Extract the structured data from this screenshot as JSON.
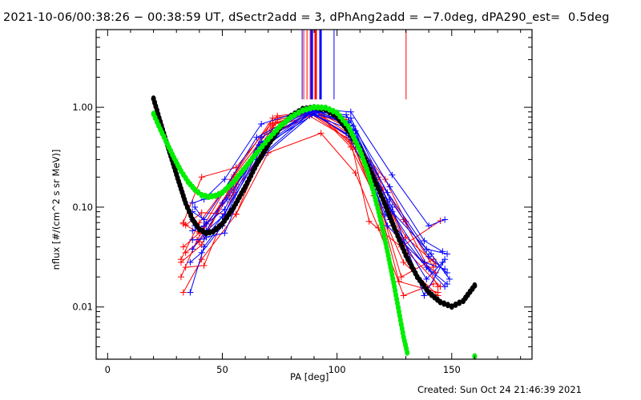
{
  "chart_data": {
    "type": "line",
    "title": "2021-10-06/00:38:26 − 00:38:59 UT, dSectr2add = 3, dPhAng2add = −7.0deg, dPA290_est=  0.5deg",
    "xlabel": "PA [deg]",
    "ylabel": "nflux [#/(cm^2 s sr MeV)]",
    "xlim": [
      -5,
      185
    ],
    "ylim": [
      0.003,
      6.0
    ],
    "yscale": "log",
    "x_ticks": [
      0,
      50,
      100,
      150
    ],
    "x_tick_labels": [
      "0",
      "50",
      "100",
      "150"
    ],
    "y_ticks": [
      0.01,
      0.1,
      1.0
    ],
    "y_tick_labels": [
      "0.01",
      "0.10",
      "1.00"
    ],
    "grid": false,
    "footer": "Created: Sun Oct 24 21:46:39 2021",
    "vertical_markers": [
      {
        "x": 84.8,
        "color": "#0000ff"
      },
      {
        "x": 85.5,
        "color": "#ff0000"
      },
      {
        "x": 86.9,
        "color": "#ff0000"
      },
      {
        "x": 88.3,
        "color": "#ff0000"
      },
      {
        "x": 89.0,
        "color": "#0000ff",
        "thick": true
      },
      {
        "x": 90.7,
        "color": "#ff0000",
        "thick": true
      },
      {
        "x": 92.8,
        "color": "#0000ff",
        "thick": true
      },
      {
        "x": 98.7,
        "color": "#0000ff"
      },
      {
        "x": 130.1,
        "color": "#ff0000"
      }
    ],
    "vertical_marker_range": [
      1.2,
      6.0
    ],
    "fit_curves": [
      {
        "name": "black-fit",
        "color": "#000000",
        "x": [
          20,
          22,
          25,
          28,
          31,
          34,
          37,
          40,
          43,
          46,
          50,
          55,
          60,
          65,
          70,
          75,
          80,
          85,
          90,
          95,
          100,
          105,
          110,
          115,
          120,
          125,
          130,
          135,
          140,
          145,
          150,
          155,
          160
        ],
        "y": [
          1.22,
          0.85,
          0.5,
          0.3,
          0.18,
          0.11,
          0.075,
          0.06,
          0.055,
          0.057,
          0.068,
          0.1,
          0.16,
          0.27,
          0.42,
          0.62,
          0.82,
          0.96,
          1.0,
          0.95,
          0.8,
          0.58,
          0.38,
          0.22,
          0.12,
          0.062,
          0.033,
          0.02,
          0.014,
          0.0112,
          0.0101,
          0.0115,
          0.0164
        ]
      },
      {
        "name": "green-fit",
        "color": "#00ee00",
        "x": [
          20,
          23,
          26,
          29,
          32,
          35,
          38,
          41,
          44,
          47,
          50,
          55,
          60,
          65,
          70,
          75,
          80,
          85,
          90,
          95,
          100,
          105,
          110,
          113,
          116,
          119,
          122,
          125,
          127,
          129,
          131,
          160
        ],
        "y": [
          0.86,
          0.6,
          0.43,
          0.31,
          0.23,
          0.18,
          0.15,
          0.132,
          0.127,
          0.13,
          0.14,
          0.18,
          0.25,
          0.35,
          0.48,
          0.64,
          0.8,
          0.93,
          1.0,
          0.99,
          0.88,
          0.64,
          0.37,
          0.24,
          0.14,
          0.075,
          0.036,
          0.016,
          0.009,
          0.005,
          0.0032,
          0.0032
        ]
      }
    ],
    "series": [
      {
        "name": "red-1",
        "color": "#ff0000",
        "x": [
          33,
          41,
          56,
          74,
          89,
          104,
          117,
          129,
          144
        ],
        "y": [
          0.07,
          0.2,
          0.25,
          0.82,
          0.9,
          0.75,
          0.22,
          0.075,
          0.016
        ]
      },
      {
        "name": "red-2",
        "color": "#ff0000",
        "x": [
          33,
          40,
          55,
          72,
          88,
          104,
          118,
          128,
          143
        ],
        "y": [
          0.068,
          0.055,
          0.21,
          0.78,
          0.88,
          0.7,
          0.2,
          0.045,
          0.022
        ]
      },
      {
        "name": "red-3",
        "color": "#ff0000",
        "x": [
          34,
          41,
          56,
          73,
          90,
          105,
          116,
          129,
          144
        ],
        "y": [
          0.066,
          0.088,
          0.085,
          0.7,
          0.92,
          0.55,
          0.13,
          0.028,
          0.013
        ]
      },
      {
        "name": "red-4",
        "color": "#ff0000",
        "x": [
          32,
          41,
          55,
          75,
          91,
          108,
          119,
          128,
          142
        ],
        "y": [
          0.028,
          0.042,
          0.19,
          0.6,
          0.93,
          0.38,
          0.1,
          0.02,
          0.03
        ]
      },
      {
        "name": "red-5",
        "color": "#ff0000",
        "x": [
          32,
          39,
          54,
          72,
          89,
          106,
          114,
          128,
          145
        ],
        "y": [
          0.02,
          0.047,
          0.16,
          0.62,
          0.85,
          0.46,
          0.072,
          0.04,
          0.073
        ]
      },
      {
        "name": "red-6",
        "color": "#ff0000",
        "x": [
          33,
          41,
          56,
          70,
          93,
          108,
          118,
          129,
          142
        ],
        "y": [
          0.014,
          0.03,
          0.085,
          0.35,
          0.55,
          0.22,
          0.062,
          0.013,
          0.017
        ]
      },
      {
        "name": "red-7",
        "color": "#ff0000",
        "x": [
          34,
          40,
          53,
          74,
          91,
          105,
          117,
          130,
          143
        ],
        "y": [
          0.035,
          0.045,
          0.13,
          0.75,
          0.9,
          0.62,
          0.17,
          0.05,
          0.027
        ]
      },
      {
        "name": "red-8",
        "color": "#ff0000",
        "x": [
          34,
          42,
          55,
          73,
          88,
          104,
          120,
          131,
          145
        ],
        "y": [
          0.025,
          0.026,
          0.14,
          0.55,
          0.82,
          0.5,
          0.15,
          0.035,
          0.016
        ]
      },
      {
        "name": "red-9",
        "color": "#ff0000",
        "x": [
          32,
          40,
          54,
          72,
          90,
          106,
          118,
          127,
          144
        ],
        "y": [
          0.03,
          0.07,
          0.19,
          0.66,
          0.95,
          0.4,
          0.11,
          0.018,
          0.014
        ]
      },
      {
        "name": "red-10",
        "color": "#ff0000",
        "x": [
          33,
          41,
          56,
          71,
          89,
          107,
          121,
          130,
          142
        ],
        "y": [
          0.04,
          0.058,
          0.17,
          0.68,
          0.87,
          0.48,
          0.19,
          0.072,
          0.025
        ]
      },
      {
        "name": "blue-1",
        "color": "#0000ff",
        "x": [
          37,
          42,
          51,
          67,
          88,
          106,
          124,
          140,
          147
        ],
        "y": [
          0.11,
          0.12,
          0.19,
          0.68,
          0.97,
          0.9,
          0.21,
          0.065,
          0.075
        ]
      },
      {
        "name": "blue-2",
        "color": "#0000ff",
        "x": [
          37,
          42,
          50,
          65,
          87,
          104,
          123,
          138,
          146
        ],
        "y": [
          0.09,
          0.075,
          0.14,
          0.5,
          0.92,
          0.84,
          0.16,
          0.046,
          0.036
        ]
      },
      {
        "name": "blue-3",
        "color": "#0000ff",
        "x": [
          38,
          43,
          50,
          66,
          89,
          105,
          122,
          139,
          148
        ],
        "y": [
          0.065,
          0.058,
          0.11,
          0.42,
          0.95,
          0.7,
          0.14,
          0.038,
          0.034
        ]
      },
      {
        "name": "blue-4",
        "color": "#0000ff",
        "x": [
          37,
          42,
          51,
          67,
          90,
          106,
          123,
          140,
          148
        ],
        "y": [
          0.047,
          0.048,
          0.085,
          0.45,
          0.93,
          0.78,
          0.12,
          0.032,
          0.022
        ]
      },
      {
        "name": "blue-5",
        "color": "#0000ff",
        "x": [
          36,
          42,
          50,
          66,
          88,
          104,
          122,
          138,
          147
        ],
        "y": [
          0.014,
          0.04,
          0.07,
          0.38,
          0.9,
          0.55,
          0.105,
          0.028,
          0.024
        ]
      },
      {
        "name": "blue-6",
        "color": "#0000ff",
        "x": [
          37,
          43,
          51,
          67,
          91,
          107,
          124,
          141,
          149
        ],
        "y": [
          0.075,
          0.05,
          0.055,
          0.4,
          0.88,
          0.65,
          0.09,
          0.034,
          0.019
        ]
      },
      {
        "name": "blue-7",
        "color": "#0000ff",
        "x": [
          36,
          41,
          50,
          68,
          89,
          106,
          121,
          139,
          147
        ],
        "y": [
          0.028,
          0.035,
          0.065,
          0.33,
          0.84,
          0.6,
          0.085,
          0.025,
          0.016
        ]
      },
      {
        "name": "blue-8",
        "color": "#0000ff",
        "x": [
          37,
          42,
          52,
          66,
          88,
          105,
          123,
          139,
          146
        ],
        "y": [
          0.058,
          0.065,
          0.12,
          0.36,
          0.87,
          0.72,
          0.075,
          0.019,
          0.028
        ]
      },
      {
        "name": "blue-9",
        "color": "#0000ff",
        "x": [
          38,
          43,
          51,
          67,
          90,
          108,
          122,
          140,
          148
        ],
        "y": [
          0.1,
          0.068,
          0.095,
          0.5,
          0.98,
          0.58,
          0.065,
          0.024,
          0.017
        ]
      },
      {
        "name": "blue-10",
        "color": "#0000ff",
        "x": [
          37,
          42,
          50,
          65,
          89,
          106,
          124,
          138,
          147
        ],
        "y": [
          0.038,
          0.055,
          0.08,
          0.3,
          0.9,
          0.5,
          0.1,
          0.013,
          0.03
        ]
      }
    ]
  }
}
